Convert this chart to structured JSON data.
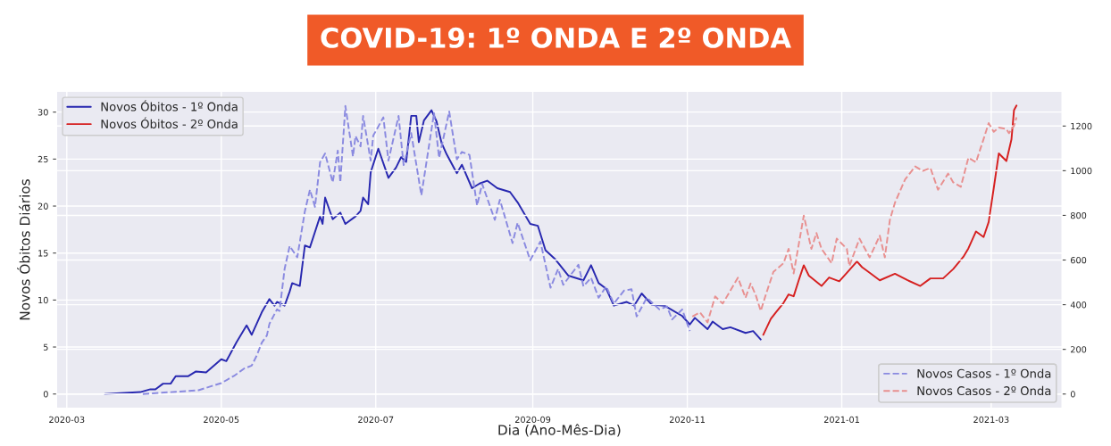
{
  "chart_data": {
    "type": "line",
    "title": "COVID-19: 1º ONDA E 2º ONDA",
    "xlabel": "Dia (Ano-Mês-Dia)",
    "ylabel": "Novos Óbitos Diários",
    "xlim": [
      "2020-02-26",
      "2021-03-29"
    ],
    "xticks": [
      "2020-03",
      "2020-05",
      "2020-07",
      "2020-09",
      "2020-11",
      "2021-01",
      "2021-03"
    ],
    "ylim": [
      -1.5,
      32.2
    ],
    "yticks": [
      0,
      5,
      10,
      15,
      20,
      25,
      30
    ],
    "y2lim": [
      -63,
      1355
    ],
    "y2ticks": [
      0,
      200,
      400,
      600,
      800,
      1000,
      1200
    ],
    "grid": true,
    "legend": [
      "top left",
      "bottom right"
    ],
    "series": [
      {
        "name": "Novos Óbitos - 1º Onda",
        "color": "#2828b0",
        "line_style": "solid",
        "x": [
          "2020-03-16",
          "2020-03-30",
          "2020-04-03",
          "2020-04-05",
          "2020-04-08",
          "2020-04-11",
          "2020-04-13",
          "2020-04-18",
          "2020-04-21",
          "2020-04-25",
          "2020-05-01",
          "2020-05-03",
          "2020-05-07",
          "2020-05-11",
          "2020-05-13",
          "2020-05-17",
          "2020-05-20",
          "2020-05-22",
          "2020-05-23",
          "2020-05-26",
          "2020-05-28",
          "2020-05-29",
          "2020-06-01",
          "2020-06-03",
          "2020-06-05",
          "2020-06-09",
          "2020-06-10",
          "2020-06-11",
          "2020-06-14",
          "2020-06-17",
          "2020-06-19",
          "2020-06-23",
          "2020-06-25",
          "2020-06-26",
          "2020-06-28",
          "2020-06-29",
          "2020-07-02",
          "2020-07-06",
          "2020-07-09",
          "2020-07-11",
          "2020-07-13",
          "2020-07-15",
          "2020-07-17",
          "2020-07-18",
          "2020-07-20",
          "2020-07-23",
          "2020-07-25",
          "2020-07-27",
          "2020-07-29",
          "2020-08-02",
          "2020-08-04",
          "2020-08-08",
          "2020-08-11",
          "2020-08-14",
          "2020-08-18",
          "2020-08-23",
          "2020-08-26",
          "2020-08-31",
          "2020-09-03",
          "2020-09-06",
          "2020-09-10",
          "2020-09-15",
          "2020-09-21",
          "2020-09-24",
          "2020-09-27",
          "2020-09-30",
          "2020-10-03",
          "2020-10-08",
          "2020-10-11",
          "2020-10-14",
          "2020-10-18",
          "2020-10-23",
          "2020-10-30",
          "2020-11-02",
          "2020-11-04",
          "2020-11-09",
          "2020-11-11",
          "2020-11-15",
          "2020-11-18",
          "2020-11-24",
          "2020-11-27",
          "2020-11-30"
        ],
        "values": [
          0,
          0.2,
          0.5,
          0.5,
          1.1,
          1.1,
          1.9,
          1.9,
          2.4,
          2.3,
          3.7,
          3.5,
          5.5,
          7.3,
          6.3,
          8.7,
          10.1,
          9.4,
          9.8,
          9.4,
          10.9,
          11.8,
          11.5,
          15.8,
          15.6,
          18.9,
          18.1,
          20.9,
          18.6,
          19.3,
          18.1,
          18.9,
          19.5,
          20.9,
          20.2,
          23.6,
          26.1,
          23.0,
          24.1,
          25.2,
          24.7,
          29.6,
          29.6,
          26.8,
          29.1,
          30.2,
          29.0,
          26.7,
          25.5,
          23.5,
          24.4,
          21.9,
          22.4,
          22.7,
          21.9,
          21.5,
          20.4,
          18.1,
          17.9,
          15.3,
          14.3,
          12.6,
          12.1,
          13.7,
          11.8,
          11.2,
          9.4,
          9.8,
          9.4,
          10.7,
          9.5,
          9.4,
          8.3,
          7.4,
          8.1,
          6.9,
          7.7,
          6.9,
          7.1,
          6.5,
          6.7,
          5.8
        ]
      },
      {
        "name": "Novos Óbitos - 2º Onda",
        "color": "#d62020",
        "line_style": "solid",
        "x": [
          "2020-12-01",
          "2020-12-04",
          "2020-12-06",
          "2020-12-09",
          "2020-12-11",
          "2020-12-13",
          "2020-12-15",
          "2020-12-17",
          "2020-12-19",
          "2020-12-24",
          "2020-12-27",
          "2020-12-31",
          "2021-01-03",
          "2021-01-07",
          "2021-01-09",
          "2021-01-12",
          "2021-01-16",
          "2021-01-22",
          "2021-01-27",
          "2021-02-01",
          "2021-02-05",
          "2021-02-10",
          "2021-02-14",
          "2021-02-18",
          "2021-02-20",
          "2021-02-23",
          "2021-02-26",
          "2021-02-28",
          "2021-03-02",
          "2021-03-04",
          "2021-03-07",
          "2021-03-09",
          "2021-03-10",
          "2021-03-11"
        ],
        "values": [
          6.3,
          8.0,
          8.7,
          9.7,
          10.6,
          10.4,
          12.1,
          13.7,
          12.6,
          11.5,
          12.4,
          12.0,
          12.9,
          14.1,
          13.5,
          12.9,
          12.1,
          12.8,
          12.1,
          11.5,
          12.3,
          12.3,
          13.3,
          14.6,
          15.5,
          17.3,
          16.7,
          18.3,
          21.9,
          25.6,
          24.8,
          27.1,
          30.2,
          30.7
        ]
      },
      {
        "name": "Novos Casos - 1º Onda",
        "color": "#8a8ae0",
        "line_style": "dashed",
        "axis": "y2",
        "x": [
          "2020-03-31",
          "2020-04-13",
          "2020-04-22",
          "2020-05-01",
          "2020-05-06",
          "2020-05-10",
          "2020-05-13",
          "2020-05-15",
          "2020-05-17",
          "2020-05-19",
          "2020-05-20",
          "2020-05-23",
          "2020-05-24",
          "2020-05-26",
          "2020-05-28",
          "2020-05-31",
          "2020-06-03",
          "2020-06-05",
          "2020-06-07",
          "2020-06-09",
          "2020-06-11",
          "2020-06-14",
          "2020-06-16",
          "2020-06-17",
          "2020-06-19",
          "2020-06-22",
          "2020-06-23",
          "2020-06-25",
          "2020-06-26",
          "2020-06-29",
          "2020-06-30",
          "2020-07-04",
          "2020-07-06",
          "2020-07-10",
          "2020-07-12",
          "2020-07-15",
          "2020-07-19",
          "2020-07-24",
          "2020-07-26",
          "2020-07-30",
          "2020-08-02",
          "2020-08-04",
          "2020-08-07",
          "2020-08-10",
          "2020-08-12",
          "2020-08-17",
          "2020-08-19",
          "2020-08-24",
          "2020-08-26",
          "2020-08-31",
          "2020-09-04",
          "2020-09-08",
          "2020-09-11",
          "2020-09-13",
          "2020-09-19",
          "2020-09-21",
          "2020-09-24",
          "2020-09-27",
          "2020-09-30",
          "2020-10-03",
          "2020-10-07",
          "2020-10-10",
          "2020-10-12",
          "2020-10-16",
          "2020-10-21",
          "2020-10-24",
          "2020-10-26",
          "2020-10-30",
          "2020-11-02"
        ],
        "values": [
          0,
          10,
          17,
          49,
          81,
          114,
          127,
          172,
          230,
          262,
          314,
          379,
          372,
          560,
          663,
          612,
          818,
          915,
          838,
          1038,
          1077,
          948,
          1090,
          948,
          1290,
          1064,
          1155,
          1109,
          1245,
          1045,
          1157,
          1239,
          1045,
          1245,
          1025,
          1168,
          890,
          1258,
          1058,
          1265,
          1051,
          1084,
          1071,
          844,
          941,
          780,
          870,
          676,
          767,
          599,
          683,
          476,
          560,
          489,
          579,
          482,
          521,
          431,
          482,
          405,
          463,
          469,
          347,
          431,
          379,
          392,
          334,
          379,
          282
        ]
      },
      {
        "name": "Novos Casos - 2º Onda",
        "color": "#e89090",
        "line_style": "dashed",
        "axis": "y2",
        "x": [
          "2020-11-03",
          "2020-11-06",
          "2020-11-09",
          "2020-11-12",
          "2020-11-15",
          "2020-11-21",
          "2020-11-24",
          "2020-11-26",
          "2020-11-28",
          "2020-11-30",
          "2020-12-02",
          "2020-12-05",
          "2020-12-07",
          "2020-12-09",
          "2020-12-11",
          "2020-12-13",
          "2020-12-17",
          "2020-12-20",
          "2020-12-22",
          "2020-12-24",
          "2020-12-28",
          "2020-12-30",
          "2021-01-03",
          "2021-01-04",
          "2021-01-08",
          "2021-01-12",
          "2021-01-16",
          "2021-01-18",
          "2021-01-20",
          "2021-01-22",
          "2021-01-26",
          "2021-01-30",
          "2021-02-02",
          "2021-02-05",
          "2021-02-08",
          "2021-02-12",
          "2021-02-14",
          "2021-02-17",
          "2021-02-20",
          "2021-02-23",
          "2021-02-26",
          "2021-02-28",
          "2021-03-02",
          "2021-03-04",
          "2021-03-07",
          "2021-03-08",
          "2021-03-10",
          "2021-03-11"
        ],
        "values": [
          347,
          366,
          321,
          437,
          405,
          521,
          431,
          495,
          444,
          372,
          444,
          547,
          566,
          586,
          650,
          540,
          799,
          650,
          721,
          650,
          586,
          696,
          650,
          573,
          696,
          612,
          709,
          612,
          780,
          857,
          961,
          1019,
          999,
          1012,
          915,
          987,
          948,
          928,
          1058,
          1038,
          1142,
          1213,
          1174,
          1193,
          1187,
          1168,
          1200,
          1239
        ]
      }
    ]
  }
}
